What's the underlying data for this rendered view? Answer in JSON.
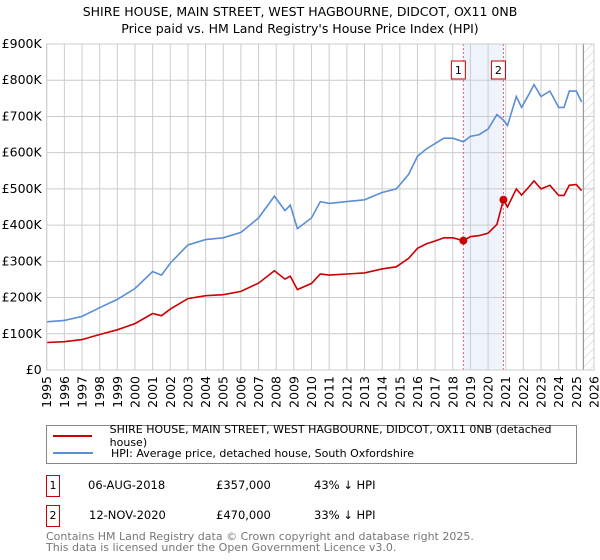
{
  "title": "SHIRE HOUSE, MAIN STREET, WEST HAGBOURNE, DIDCOT, OX11 0NB",
  "subtitle": "Price paid vs. HM Land Registry's House Price Index (HPI)",
  "chart_data": {
    "type": "line",
    "xlim": [
      1995,
      2026
    ],
    "ylim": [
      0,
      900000
    ],
    "x_ticks": [
      "1995",
      "1996",
      "1997",
      "1998",
      "1999",
      "2000",
      "2001",
      "2002",
      "2003",
      "2004",
      "2005",
      "2006",
      "2007",
      "2008",
      "2009",
      "2010",
      "2011",
      "2012",
      "2013",
      "2014",
      "2015",
      "2016",
      "2017",
      "2018",
      "2019",
      "2020",
      "2021",
      "2022",
      "2023",
      "2024",
      "2025",
      "2026"
    ],
    "y_ticks": [
      {
        "v": 0,
        "label": "£0"
      },
      {
        "v": 100000,
        "label": "£100K"
      },
      {
        "v": 200000,
        "label": "£200K"
      },
      {
        "v": 300000,
        "label": "£300K"
      },
      {
        "v": 400000,
        "label": "£400K"
      },
      {
        "v": 500000,
        "label": "£500K"
      },
      {
        "v": 600000,
        "label": "£600K"
      },
      {
        "v": 700000,
        "label": "£700K"
      },
      {
        "v": 800000,
        "label": "£800K"
      },
      {
        "v": 900000,
        "label": "£900K"
      }
    ],
    "grid": true,
    "shaded_range": [
      2018.6,
      2020.87
    ],
    "data_end": 2025.4,
    "series": [
      {
        "name": "SHIRE HOUSE, MAIN STREET, WEST HAGBOURNE, DIDCOT, OX11 0NB (detached house)",
        "color": "#cc0000",
        "x": [
          1995,
          1996,
          1997,
          1998,
          1999,
          2000,
          2001,
          2001.5,
          2002,
          2003,
          2004,
          2005,
          2006,
          2007,
          2007.9,
          2008.5,
          2008.8,
          2009.2,
          2010,
          2010.5,
          2011,
          2012,
          2013,
          2014,
          2014.8,
          2015.5,
          2016,
          2016.5,
          2017,
          2017.5,
          2018,
          2018.6,
          2019,
          2019.5,
          2020,
          2020.5,
          2020.87,
          2021.1,
          2021.6,
          2021.9,
          2022.3,
          2022.6,
          2023,
          2023.5,
          2024,
          2024.3,
          2024.6,
          2025,
          2025.3
        ],
        "y": [
          76000,
          78000,
          84000,
          98000,
          111000,
          128000,
          156000,
          150000,
          168000,
          197000,
          205000,
          208000,
          217000,
          240000,
          274000,
          251000,
          259000,
          222000,
          239000,
          265000,
          262000,
          265000,
          268000,
          279000,
          285000,
          308000,
          336000,
          348000,
          356000,
          365000,
          365000,
          357000,
          368000,
          371000,
          378000,
          402000,
          470000,
          450000,
          500000,
          483000,
          505000,
          522000,
          500000,
          510000,
          482000,
          482000,
          510000,
          512000,
          495000
        ]
      },
      {
        "name": "HPI: Average price, detached house, South Oxfordshire",
        "color": "#5b8ed6",
        "x": [
          1995,
          1996,
          1997,
          1998,
          1999,
          2000,
          2001,
          2001.5,
          2002,
          2003,
          2004,
          2005,
          2006,
          2007,
          2007.9,
          2008.5,
          2008.8,
          2009.2,
          2010,
          2010.5,
          2011,
          2012,
          2013,
          2014,
          2014.8,
          2015.5,
          2016,
          2016.5,
          2017,
          2017.5,
          2018,
          2018.6,
          2019,
          2019.5,
          2020,
          2020.5,
          2020.87,
          2021.1,
          2021.6,
          2021.9,
          2022.3,
          2022.6,
          2023,
          2023.5,
          2024,
          2024.3,
          2024.6,
          2025,
          2025.3
        ],
        "y": [
          133000,
          137000,
          148000,
          172000,
          195000,
          225000,
          272000,
          262000,
          295000,
          345000,
          360000,
          365000,
          380000,
          420000,
          480000,
          440000,
          455000,
          390000,
          420000,
          465000,
          460000,
          465000,
          470000,
          490000,
          500000,
          540000,
          590000,
          610000,
          625000,
          640000,
          640000,
          630000,
          645000,
          650000,
          665000,
          705000,
          690000,
          675000,
          755000,
          725000,
          760000,
          788000,
          755000,
          770000,
          725000,
          725000,
          770000,
          770000,
          740000
        ]
      }
    ],
    "markers": [
      {
        "label": "1",
        "x": 2018.6,
        "y": 357000
      },
      {
        "label": "2",
        "x": 2020.87,
        "y": 470000
      }
    ]
  },
  "legend": {
    "property": "SHIRE HOUSE, MAIN STREET, WEST HAGBOURNE, DIDCOT, OX11 0NB (detached house)",
    "hpi": "HPI: Average price, detached house, South Oxfordshire"
  },
  "transactions": [
    {
      "num": "1",
      "date": "06-AUG-2018",
      "price": "£357,000",
      "hpi": "43% ↓ HPI"
    },
    {
      "num": "2",
      "date": "12-NOV-2020",
      "price": "£470,000",
      "hpi": "33% ↓ HPI"
    }
  ],
  "footer": {
    "line1": "Contains HM Land Registry data © Crown copyright and database right 2025.",
    "line2": "This data is licensed under the Open Government Licence v3.0."
  }
}
